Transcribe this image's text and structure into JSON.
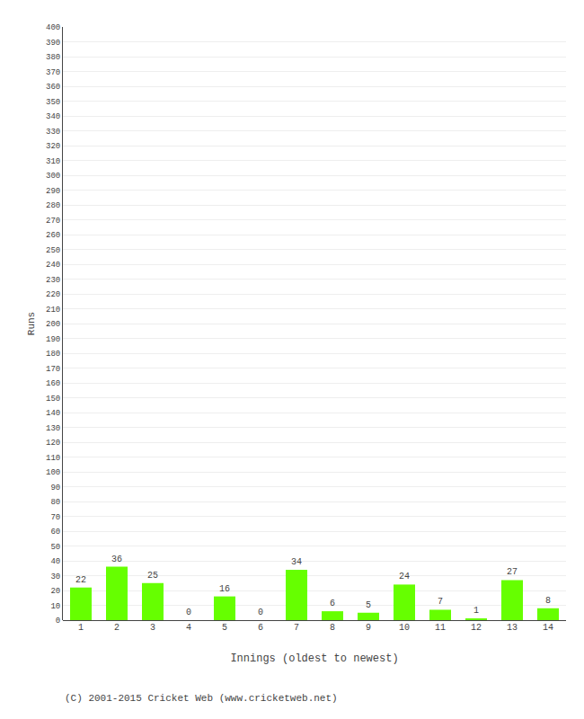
{
  "chart_data": {
    "type": "bar",
    "xlabel": "Innings (oldest to newest)",
    "ylabel": "Runs",
    "categories": [
      "1",
      "2",
      "3",
      "4",
      "5",
      "6",
      "7",
      "8",
      "9",
      "10",
      "11",
      "12",
      "13",
      "14"
    ],
    "values": [
      22,
      36,
      25,
      0,
      16,
      0,
      34,
      6,
      5,
      24,
      7,
      1,
      27,
      8
    ],
    "color": "#66ff00",
    "ylim": [
      0,
      400
    ],
    "yticks": [
      0,
      10,
      20,
      30,
      40,
      50,
      60,
      70,
      80,
      90,
      100,
      110,
      120,
      130,
      140,
      150,
      160,
      170,
      180,
      190,
      200,
      210,
      220,
      230,
      240,
      250,
      260,
      270,
      280,
      290,
      300,
      310,
      320,
      330,
      340,
      350,
      360,
      370,
      380,
      390,
      400
    ],
    "grid": true,
    "data_labels": true,
    "annotations": [
      "(C) 2001-2015 Cricket Web (www.cricketweb.net)"
    ]
  }
}
